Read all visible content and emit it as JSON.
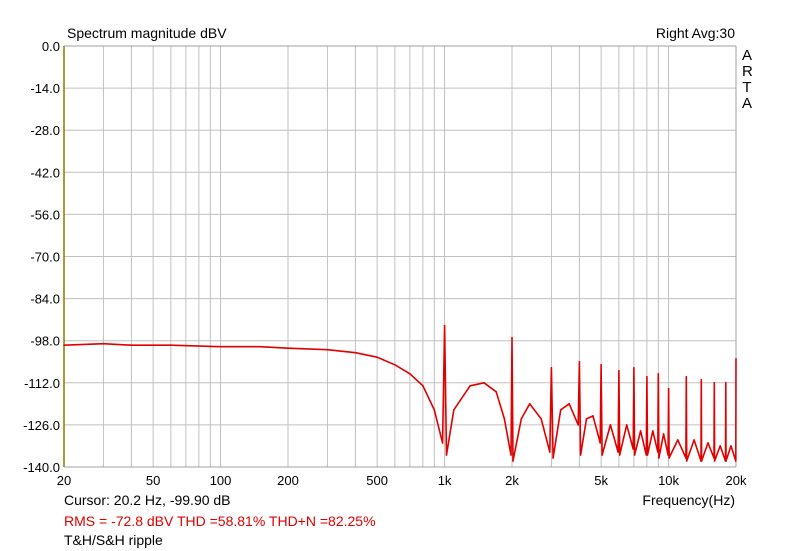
{
  "chart_data": {
    "type": "line",
    "title": "Spectrum magnitude dBV",
    "top_right": "Right  Avg:30",
    "brand": "ARTA",
    "xlabel": "Frequency(Hz)",
    "ylabel": "",
    "xscale": "log",
    "xlim": [
      20,
      20000
    ],
    "ylim": [
      -140,
      0
    ],
    "grid": true,
    "legend": "none",
    "yticks": [
      0,
      -14,
      -28,
      -42,
      -56,
      -70,
      -84,
      -98,
      -112,
      -126,
      -140
    ],
    "ytick_labels": [
      "0.0",
      "-14.0",
      "-28.0",
      "-42.0",
      "-56.0",
      "-70.0",
      "-84.0",
      "-98.0",
      "-112.0",
      "-126.0",
      "-140.0"
    ],
    "xticks": [
      20,
      50,
      100,
      200,
      500,
      1000,
      2000,
      5000,
      10000,
      20000
    ],
    "xtick_labels": [
      "20",
      "50",
      "100",
      "200",
      "500",
      "1k",
      "2k",
      "5k",
      "10k",
      "20k"
    ],
    "series": [
      {
        "color": "#e00000",
        "x": [
          20,
          30,
          40,
          60,
          100,
          150,
          200,
          300,
          400,
          500,
          600,
          700,
          800,
          900,
          980,
          1000,
          1020,
          1100,
          1300,
          1500,
          1700,
          1850,
          1980,
          2000,
          2020,
          2200,
          2400,
          2700,
          2950,
          3000,
          3050,
          3300,
          3600,
          3950,
          4000,
          4050,
          4300,
          4600,
          4950,
          5000,
          5050,
          5500,
          5950,
          6000,
          6050,
          6500,
          6950,
          7000,
          7050,
          7500,
          7950,
          8000,
          8050,
          8500,
          8950,
          9000,
          9050,
          9500,
          9950,
          10000,
          10050,
          11000,
          11950,
          12000,
          12050,
          13000,
          13950,
          14000,
          14050,
          15000,
          15950,
          16000,
          16050,
          17000,
          17950,
          18000,
          18050,
          19000,
          19950,
          20000
        ],
        "y": [
          -99.5,
          -99,
          -99.5,
          -99.5,
          -100,
          -100,
          -100.5,
          -101,
          -102,
          -103.5,
          -106,
          -109,
          -113,
          -121,
          -132,
          -93,
          -136,
          -121,
          -113,
          -112,
          -115,
          -124,
          -136,
          -97,
          -138,
          -124,
          -119,
          -124,
          -135,
          -107,
          -137,
          -121,
          -119,
          -126,
          -105,
          -136,
          -124,
          -123,
          -132,
          -106,
          -136,
          -126,
          -135,
          -108,
          -136,
          -126,
          -134,
          -107,
          -136,
          -128,
          -136,
          -110,
          -136,
          -128,
          -135,
          -109,
          -137,
          -129,
          -136,
          -114,
          -137,
          -131,
          -137,
          -110,
          -138,
          -131,
          -138,
          -111,
          -138,
          -132,
          -137,
          -112,
          -138,
          -133,
          -138,
          -112,
          -138,
          -133,
          -138,
          -104
        ]
      }
    ]
  },
  "cursor_text": "Cursor:   20.2 Hz, -99.90 dB",
  "measurements": "RMS =  -72.8 dBV   THD =58.81%   THD+N =82.25%",
  "caption": "T&H/S&H ripple",
  "colors": {
    "trace": "#e00000",
    "grid": "#c0c0c0",
    "left_axis": "#808000",
    "right_axis": "#a0a0a0"
  }
}
